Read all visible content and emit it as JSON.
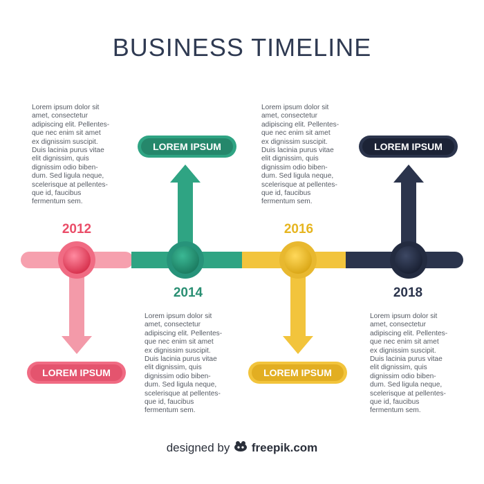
{
  "title": "BUSINESS TIMELINE",
  "colors": {
    "pink": "#f06b83",
    "green": "#2fa483",
    "yellow": "#f2c43c",
    "navy": "#2b344c",
    "text": "#555a63",
    "title": "#2f3a52"
  },
  "milestones": [
    {
      "year": "2012",
      "label": "LOREM IPSUM",
      "text": "Lorem ipsum dolor sit\namet, consectetur\nadipiscing elit. Pellentes-\nque nec enim sit amet\nex dignissim suscipit.\nDuis lacinia purus vitae\nelit dignissim, quis\ndignissim odio biben-\ndum. Sed ligula neque,\nscelerisque at pellentes-\nque id, faucibus\nfermentum sem."
    },
    {
      "year": "2014",
      "label": "LOREM IPSUM",
      "text": "Lorem ipsum dolor sit\namet, consectetur\nadipiscing elit. Pellentes-\nque nec enim sit amet\nex dignissim suscipit.\nDuis lacinia purus vitae\nelit dignissim, quis\ndignissim odio biben-\ndum. Sed ligula neque,\nscelerisque at pellentes-\nque id, faucibus\nfermentum sem."
    },
    {
      "year": "2016",
      "label": "LOREM IPSUM",
      "text": "Lorem ipsum dolor sit\namet, consectetur\nadipiscing elit. Pellentes-\nque nec enim sit amet\nex dignissim suscipit.\nDuis lacinia purus vitae\nelit dignissim, quis\ndignissim odio biben-\ndum. Sed ligula neque,\nscelerisque at pellentes-\nque id, faucibus\nfermentum sem."
    },
    {
      "year": "2018",
      "label": "LOREM IPSUM",
      "text": "Lorem ipsum dolor sit\namet, consectetur\nadipiscing elit. Pellentes-\nque nec enim sit amet\nex dignissim suscipit.\nDuis lacinia purus vitae\nelit dignissim, quis\ndignissim odio biben-\ndum. Sed ligula neque,\nscelerisque at pellentes-\nque id, faucibus\nfermentum sem."
    }
  ],
  "footer": {
    "prefix": "designed by",
    "brand": "freepik.com",
    "logo_icon": "freepik-logo-icon"
  }
}
